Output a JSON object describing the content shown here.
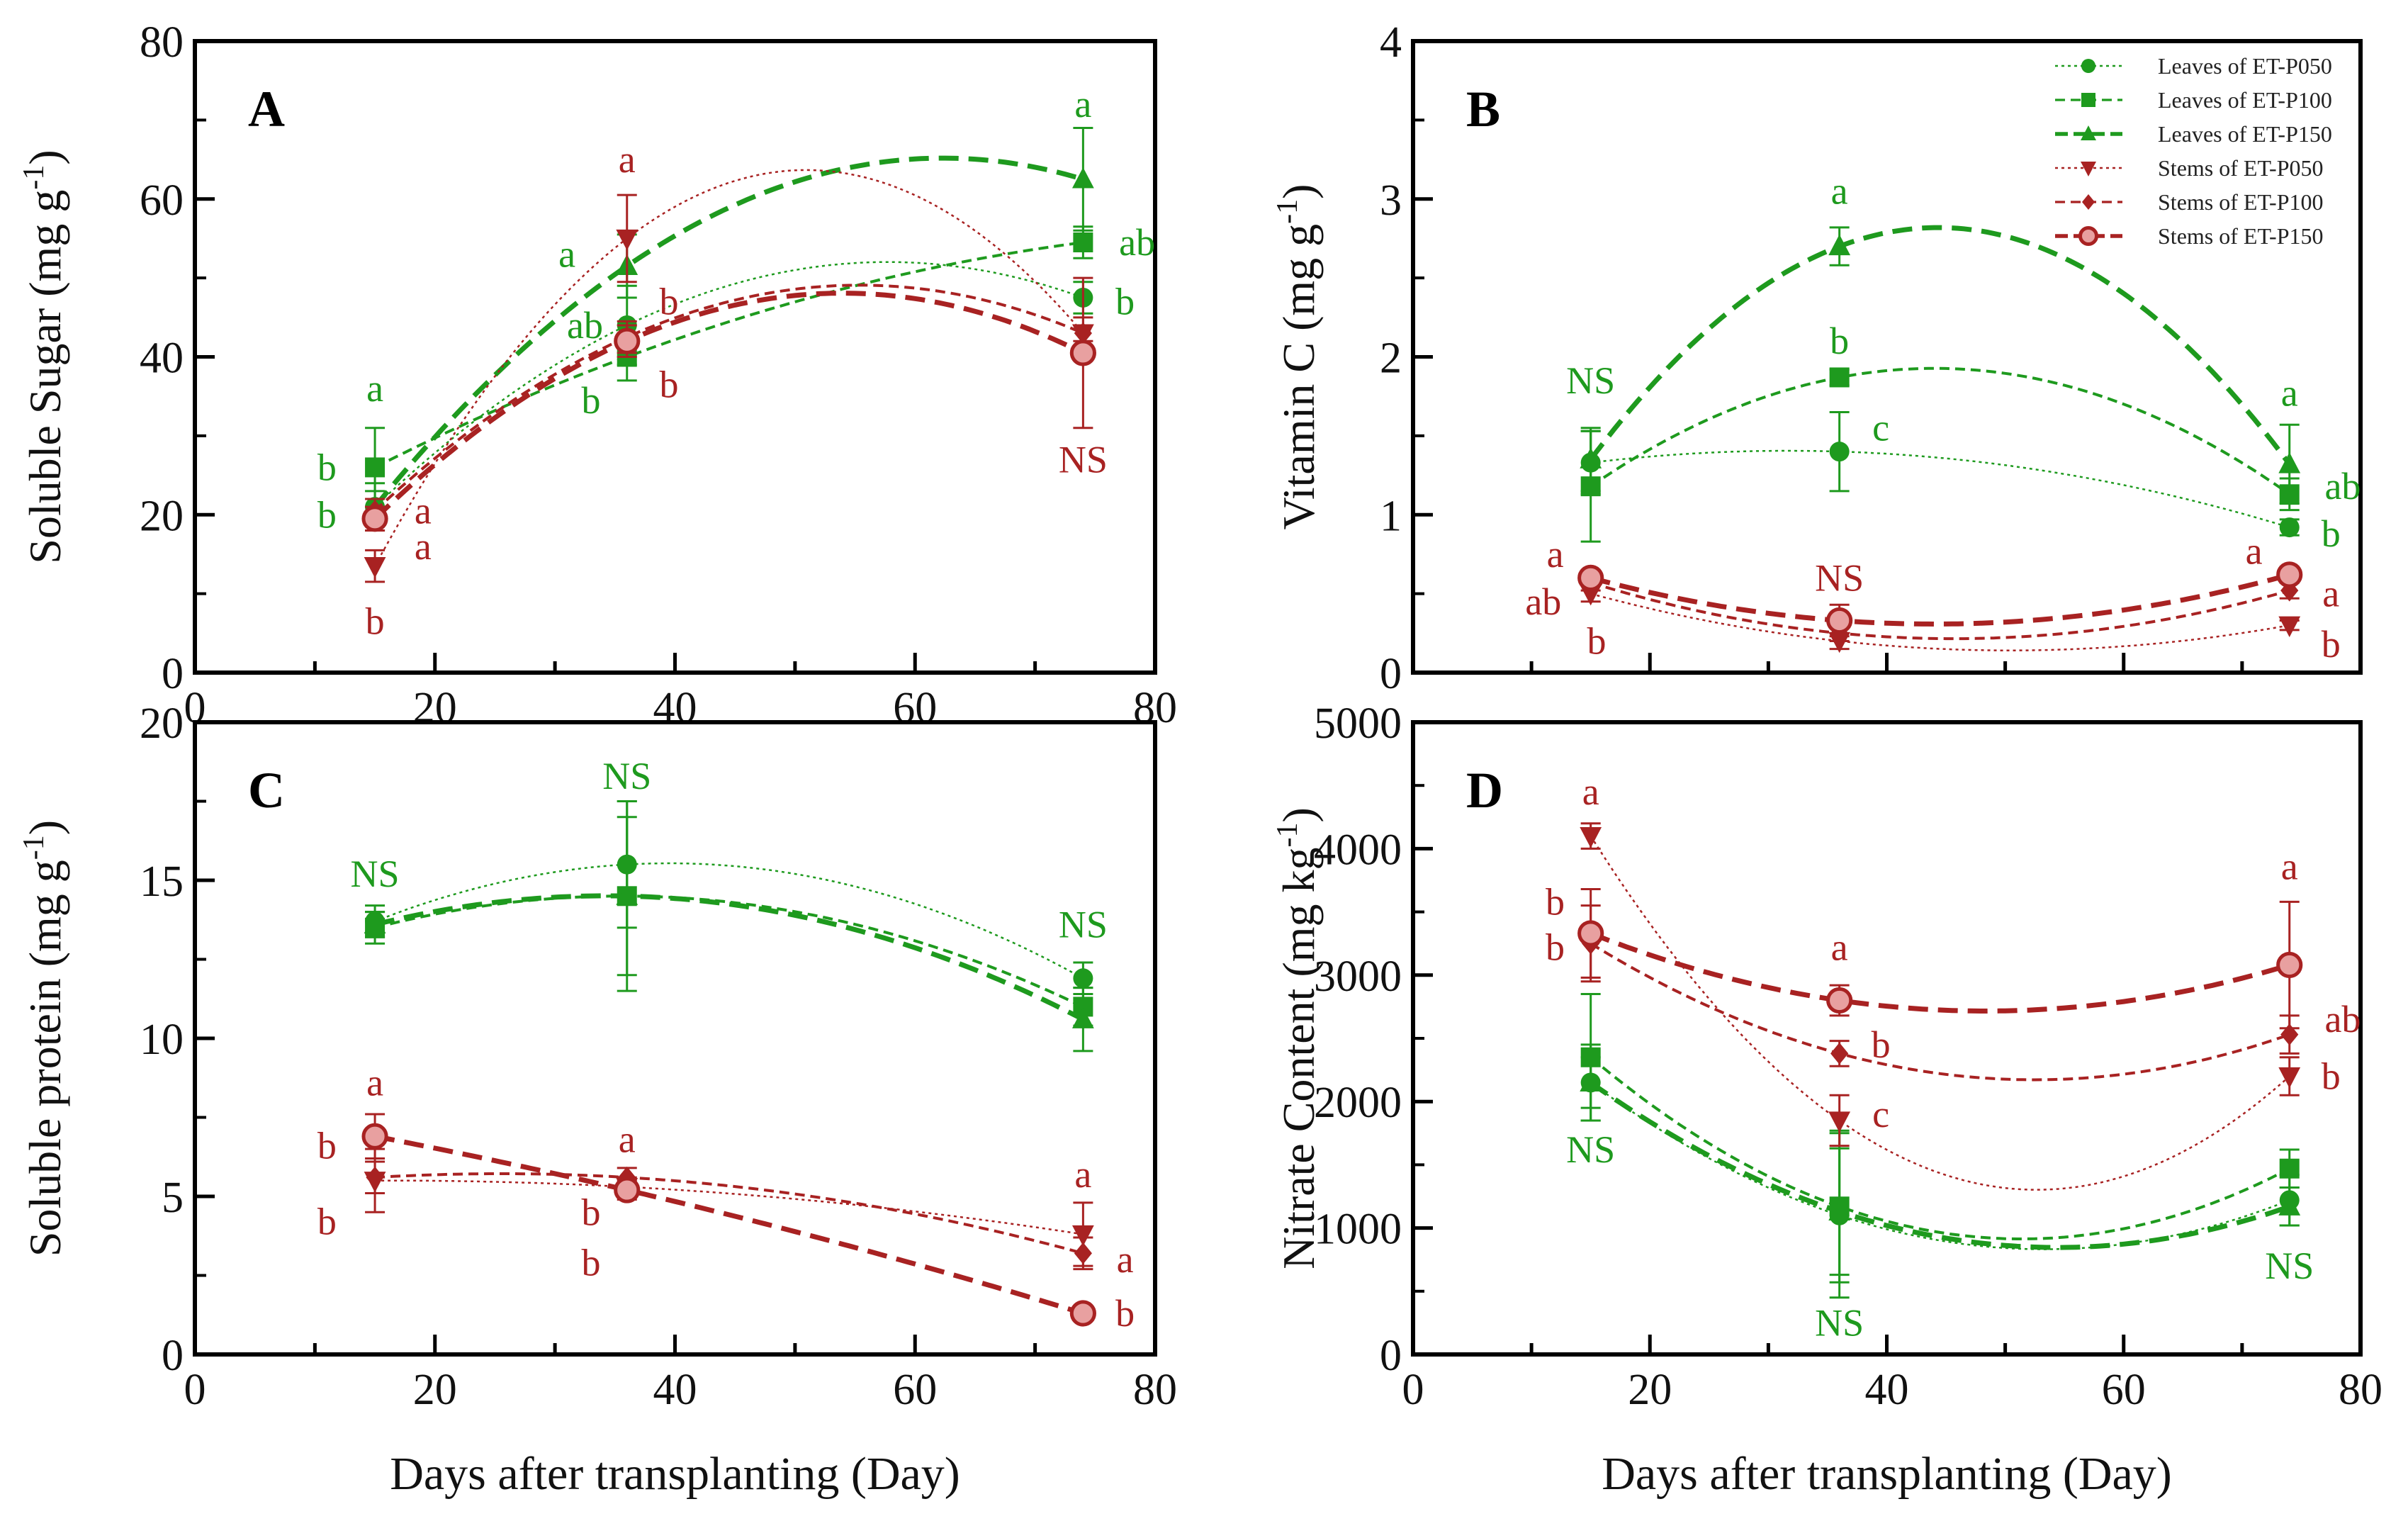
{
  "colors": {
    "leaves": "#1e9a1e",
    "stems": "#a82222",
    "axis": "#000000"
  },
  "legend": {
    "placement": "top-right of panel B",
    "items": [
      {
        "key": "LP050",
        "label": "Leaves of ET-P050"
      },
      {
        "key": "LP100",
        "label": "Leaves of ET-P100"
      },
      {
        "key": "LP150",
        "label": "Leaves of ET-P150"
      },
      {
        "key": "SP050",
        "label": "Stems of ET-P050"
      },
      {
        "key": "SP100",
        "label": "Stems of ET-P100"
      },
      {
        "key": "SP150",
        "label": "Stems of ET-P150"
      }
    ]
  },
  "series_styles": {
    "LP050": {
      "group": "leaves",
      "marker": "circle",
      "line": "dotted-thin"
    },
    "LP100": {
      "group": "leaves",
      "marker": "square",
      "line": "dashed-medium"
    },
    "LP150": {
      "group": "leaves",
      "marker": "triangle-up",
      "line": "dashed-thick"
    },
    "SP050": {
      "group": "stems",
      "marker": "triangle-down",
      "line": "dotted-thin"
    },
    "SP100": {
      "group": "stems",
      "marker": "diamond",
      "line": "dashed-medium"
    },
    "SP150": {
      "group": "stems",
      "marker": "open-circle",
      "line": "dashed-thick"
    }
  },
  "chart_data": [
    {
      "type": "line",
      "panel": "A",
      "ylabel": "Soluble Sugar (mg g",
      "ylabel_sup": "-1",
      "ylabel_end": ")",
      "xlabel": "",
      "xlim": [
        0,
        80
      ],
      "ylim": [
        0,
        80
      ],
      "yticks": [
        0,
        20,
        40,
        60,
        80
      ],
      "xticks": [
        0,
        20,
        40,
        60,
        80
      ],
      "x": [
        15,
        36,
        74
      ],
      "series": [
        {
          "key": "LP050",
          "values": [
            21,
            44,
            47.5
          ],
          "err": [
            2,
            5,
            2
          ]
        },
        {
          "key": "LP100",
          "values": [
            26,
            40,
            54.5
          ],
          "err": [
            5,
            3,
            2
          ]
        },
        {
          "key": "LP150",
          "values": [
            21,
            51.5,
            62.5
          ],
          "err": [
            3,
            4,
            6.5
          ]
        },
        {
          "key": "SP050",
          "values": [
            13.5,
            55,
            43
          ],
          "err": [
            2,
            5.5,
            1
          ]
        },
        {
          "key": "SP100",
          "values": [
            20.5,
            42.5,
            43
          ],
          "err": [
            1.5,
            2,
            2
          ]
        },
        {
          "key": "SP150",
          "values": [
            19.5,
            42,
            40.5
          ],
          "err": [
            1.5,
            2,
            9.5
          ]
        }
      ],
      "annotations": [
        {
          "text": "a",
          "group": "leaves",
          "x": 15,
          "y": 36
        },
        {
          "text": "b",
          "group": "leaves",
          "x": 11,
          "y": 26
        },
        {
          "text": "b",
          "group": "leaves",
          "x": 11,
          "y": 20
        },
        {
          "text": "a",
          "group": "stems",
          "x": 19,
          "y": 20.5
        },
        {
          "text": "a",
          "group": "stems",
          "x": 19,
          "y": 16
        },
        {
          "text": "b",
          "group": "stems",
          "x": 15,
          "y": 6.5
        },
        {
          "text": "a",
          "group": "leaves",
          "x": 31,
          "y": 53
        },
        {
          "text": "ab",
          "group": "leaves",
          "x": 32.5,
          "y": 44
        },
        {
          "text": "b",
          "group": "leaves",
          "x": 33,
          "y": 34.5
        },
        {
          "text": "a",
          "group": "stems",
          "x": 36,
          "y": 65
        },
        {
          "text": "b",
          "group": "stems",
          "x": 39.5,
          "y": 47
        },
        {
          "text": "b",
          "group": "stems",
          "x": 39.5,
          "y": 36.5
        },
        {
          "text": "a",
          "group": "leaves",
          "x": 74,
          "y": 72
        },
        {
          "text": "ab",
          "group": "leaves",
          "x": 78.5,
          "y": 54.5
        },
        {
          "text": "b",
          "group": "leaves",
          "x": 77.5,
          "y": 47
        },
        {
          "text": "NS",
          "group": "stems",
          "x": 74,
          "y": 27
        }
      ]
    },
    {
      "type": "line",
      "panel": "B",
      "ylabel": "Vitamin C (mg g",
      "ylabel_sup": "-1",
      "ylabel_end": ")",
      "xlabel": "",
      "xlim": [
        0,
        80
      ],
      "ylim": [
        0,
        4
      ],
      "yticks": [
        0,
        1,
        2,
        3,
        4
      ],
      "xticks": [],
      "x": [
        15,
        36,
        74
      ],
      "series": [
        {
          "key": "LP050",
          "values": [
            1.33,
            1.4,
            0.92
          ],
          "err": [
            0.2,
            0.25,
            0.05
          ]
        },
        {
          "key": "LP100",
          "values": [
            1.18,
            1.87,
            1.13
          ],
          "err": [
            0.35,
            0.05,
            0.1
          ]
        },
        {
          "key": "LP150",
          "values": [
            1.35,
            2.7,
            1.32
          ],
          "err": [
            0.2,
            0.12,
            0.25
          ]
        },
        {
          "key": "SP050",
          "values": [
            0.5,
            0.2,
            0.3
          ],
          "err": [
            0.05,
            0.05,
            0.03
          ]
        },
        {
          "key": "SP100",
          "values": [
            0.57,
            0.25,
            0.52
          ],
          "err": [
            0.05,
            0.05,
            0.05
          ]
        },
        {
          "key": "SP150",
          "values": [
            0.6,
            0.33,
            0.62
          ],
          "err": [
            0.05,
            0.1,
            0.05
          ]
        }
      ],
      "annotations": [
        {
          "text": "NS",
          "group": "leaves",
          "x": 15,
          "y": 1.85
        },
        {
          "text": "a",
          "group": "stems",
          "x": 12,
          "y": 0.75
        },
        {
          "text": "ab",
          "group": "stems",
          "x": 11,
          "y": 0.45
        },
        {
          "text": "b",
          "group": "stems",
          "x": 15.5,
          "y": 0.2
        },
        {
          "text": "a",
          "group": "leaves",
          "x": 36,
          "y": 3.05
        },
        {
          "text": "b",
          "group": "leaves",
          "x": 36,
          "y": 2.1
        },
        {
          "text": "c",
          "group": "leaves",
          "x": 39.5,
          "y": 1.55
        },
        {
          "text": "NS",
          "group": "stems",
          "x": 36,
          "y": 0.6
        },
        {
          "text": "a",
          "group": "leaves",
          "x": 74,
          "y": 1.77
        },
        {
          "text": "ab",
          "group": "leaves",
          "x": 78.5,
          "y": 1.18
        },
        {
          "text": "b",
          "group": "leaves",
          "x": 77.5,
          "y": 0.88
        },
        {
          "text": "a",
          "group": "stems",
          "x": 71,
          "y": 0.77
        },
        {
          "text": "a",
          "group": "stems",
          "x": 77.5,
          "y": 0.5
        },
        {
          "text": "b",
          "group": "stems",
          "x": 77.5,
          "y": 0.18
        }
      ]
    },
    {
      "type": "line",
      "panel": "C",
      "ylabel": "Soluble protein (mg g",
      "ylabel_sup": "-1",
      "ylabel_end": ")",
      "xlabel": "Days after transplanting (Day)",
      "xlim": [
        0,
        80
      ],
      "ylim": [
        0,
        20
      ],
      "yticks": [
        0,
        5,
        10,
        15,
        20
      ],
      "xticks": [
        0,
        20,
        40,
        60,
        80
      ],
      "x": [
        15,
        36,
        74
      ],
      "series": [
        {
          "key": "LP050",
          "values": [
            13.7,
            15.5,
            11.9
          ],
          "err": [
            0.5,
            2,
            0.5
          ]
        },
        {
          "key": "LP100",
          "values": [
            13.5,
            14.5,
            11.0
          ],
          "err": [
            0.5,
            2.5,
            0.6
          ]
        },
        {
          "key": "LP150",
          "values": [
            13.6,
            14.5,
            10.6
          ],
          "err": [
            0.4,
            3,
            1
          ]
        },
        {
          "key": "SP050",
          "values": [
            5.5,
            5.3,
            3.8
          ],
          "err": [
            1,
            0.3,
            1
          ]
        },
        {
          "key": "SP100",
          "values": [
            5.6,
            5.6,
            3.2
          ],
          "err": [
            0.5,
            0.3,
            0.5
          ]
        },
        {
          "key": "SP150",
          "values": [
            6.9,
            5.2,
            1.3
          ],
          "err": [
            0.7,
            0.3,
            0.2
          ]
        }
      ],
      "annotations": [
        {
          "text": "NS",
          "group": "leaves",
          "x": 15,
          "y": 15.2
        },
        {
          "text": "NS",
          "group": "leaves",
          "x": 36,
          "y": 18.3
        },
        {
          "text": "NS",
          "group": "leaves",
          "x": 74,
          "y": 13.6
        },
        {
          "text": "a",
          "group": "stems",
          "x": 15,
          "y": 8.6
        },
        {
          "text": "b",
          "group": "stems",
          "x": 11,
          "y": 6.6
        },
        {
          "text": "b",
          "group": "stems",
          "x": 11,
          "y": 4.2
        },
        {
          "text": "a",
          "group": "stems",
          "x": 36,
          "y": 6.8
        },
        {
          "text": "b",
          "group": "stems",
          "x": 33,
          "y": 4.5
        },
        {
          "text": "b",
          "group": "stems",
          "x": 33,
          "y": 2.9
        },
        {
          "text": "a",
          "group": "stems",
          "x": 74,
          "y": 5.7
        },
        {
          "text": "a",
          "group": "stems",
          "x": 77.5,
          "y": 3.0
        },
        {
          "text": "b",
          "group": "stems",
          "x": 77.5,
          "y": 1.3
        }
      ]
    },
    {
      "type": "line",
      "panel": "D",
      "ylabel": "Nitrate Content (mg kg",
      "ylabel_sup": "-1",
      "ylabel_end": ")",
      "xlabel": "Days after transplanting (Day)",
      "xlim": [
        0,
        80
      ],
      "ylim": [
        0,
        5000
      ],
      "yticks": [
        0,
        1000,
        2000,
        3000,
        4000,
        5000
      ],
      "xticks": [
        0,
        20,
        40,
        60,
        80
      ],
      "x": [
        15,
        36,
        74
      ],
      "series": [
        {
          "key": "LP050",
          "values": [
            2150,
            1100,
            1220
          ],
          "err": [
            300,
            650,
            200
          ]
        },
        {
          "key": "LP100",
          "values": [
            2350,
            1170,
            1470
          ],
          "err": [
            500,
            600,
            150
          ]
        },
        {
          "key": "LP150",
          "values": [
            2150,
            1130,
            1170
          ],
          "err": [
            200,
            500,
            150
          ]
        },
        {
          "key": "SP050",
          "values": [
            4100,
            1850,
            2200
          ],
          "err": [
            100,
            200,
            150
          ]
        },
        {
          "key": "SP100",
          "values": [
            3250,
            2380,
            2530
          ],
          "err": [
            300,
            100,
            150
          ]
        },
        {
          "key": "SP150",
          "values": [
            3330,
            2800,
            3080
          ],
          "err": [
            350,
            120,
            500
          ]
        }
      ],
      "annotations": [
        {
          "text": "a",
          "group": "stems",
          "x": 15,
          "y": 4450
        },
        {
          "text": "b",
          "group": "stems",
          "x": 12,
          "y": 3580
        },
        {
          "text": "b",
          "group": "stems",
          "x": 12,
          "y": 3220
        },
        {
          "text": "a",
          "group": "stems",
          "x": 36,
          "y": 3220
        },
        {
          "text": "b",
          "group": "stems",
          "x": 39.5,
          "y": 2450
        },
        {
          "text": "c",
          "group": "stems",
          "x": 39.5,
          "y": 1900
        },
        {
          "text": "a",
          "group": "stems",
          "x": 74,
          "y": 3860
        },
        {
          "text": "ab",
          "group": "stems",
          "x": 78.5,
          "y": 2650
        },
        {
          "text": "b",
          "group": "stems",
          "x": 77.5,
          "y": 2200
        },
        {
          "text": "NS",
          "group": "leaves",
          "x": 15,
          "y": 1620
        },
        {
          "text": "NS",
          "group": "leaves",
          "x": 36,
          "y": 250
        },
        {
          "text": "NS",
          "group": "leaves",
          "x": 74,
          "y": 700
        }
      ]
    }
  ]
}
